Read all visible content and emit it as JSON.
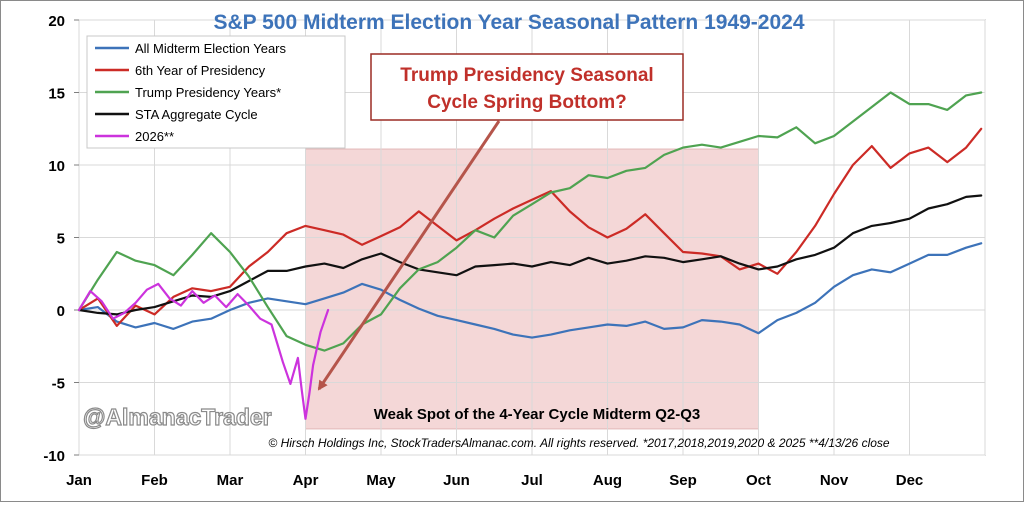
{
  "chart_data": {
    "type": "line",
    "title": "S&P 500 Midterm Election Year Seasonal Pattern 1949-2024",
    "xlabel": "",
    "ylabel": "",
    "ylim": [
      -10,
      20
    ],
    "yticks": [
      "20",
      "15",
      "10",
      "5",
      "0",
      "-5",
      "-10"
    ],
    "yticks_values": [
      20,
      15,
      10,
      5,
      0,
      -5,
      -10
    ],
    "months": [
      "Jan",
      "Feb",
      "Mar",
      "Apr",
      "May",
      "Jun",
      "Jul",
      "Aug",
      "Sep",
      "Oct",
      "Nov",
      "Dec"
    ],
    "x_range": [
      0,
      12
    ],
    "grid": true,
    "legend_position": "top-left",
    "series": [
      {
        "name": "All Midterm Election Years",
        "color": "#3d73b9",
        "x": [
          0,
          0.25,
          0.5,
          0.75,
          1,
          1.25,
          1.5,
          1.75,
          2,
          2.25,
          2.5,
          2.75,
          3,
          3.25,
          3.5,
          3.75,
          4,
          4.25,
          4.5,
          4.75,
          5,
          5.25,
          5.5,
          5.75,
          6,
          6.25,
          6.5,
          6.75,
          7,
          7.25,
          7.5,
          7.75,
          8,
          8.25,
          8.5,
          8.75,
          9,
          9.25,
          9.5,
          9.75,
          10,
          10.25,
          10.5,
          10.75,
          11,
          11.25,
          11.5,
          11.75,
          11.95
        ],
        "values": [
          0,
          0.2,
          -0.8,
          -1.2,
          -0.9,
          -1.3,
          -0.8,
          -0.6,
          0,
          0.5,
          0.8,
          0.6,
          0.4,
          0.8,
          1.2,
          1.8,
          1.4,
          0.7,
          0.1,
          -0.4,
          -0.7,
          -1.0,
          -1.3,
          -1.7,
          -1.9,
          -1.7,
          -1.4,
          -1.2,
          -1.0,
          -1.1,
          -0.8,
          -1.3,
          -1.2,
          -0.7,
          -0.8,
          -1.0,
          -1.6,
          -0.7,
          -0.2,
          0.5,
          1.6,
          2.4,
          2.8,
          2.6,
          3.2,
          3.8,
          3.8,
          4.3,
          4.6
        ]
      },
      {
        "name": "6th Year of Presidency",
        "color": "#cc2b26",
        "x": [
          0,
          0.25,
          0.5,
          0.75,
          1,
          1.25,
          1.5,
          1.75,
          2,
          2.25,
          2.5,
          2.75,
          3,
          3.25,
          3.5,
          3.75,
          4,
          4.25,
          4.5,
          4.75,
          5,
          5.25,
          5.5,
          5.75,
          6,
          6.25,
          6.5,
          6.75,
          7,
          7.25,
          7.5,
          7.75,
          8,
          8.25,
          8.5,
          8.75,
          9,
          9.25,
          9.5,
          9.75,
          10,
          10.25,
          10.5,
          10.75,
          11,
          11.25,
          11.5,
          11.75,
          11.95
        ],
        "values": [
          0,
          0.8,
          -1.1,
          0.3,
          -0.3,
          0.9,
          1.5,
          1.3,
          1.6,
          3.0,
          4.0,
          5.3,
          5.8,
          5.5,
          5.2,
          4.5,
          5.1,
          5.7,
          6.8,
          5.8,
          4.8,
          5.5,
          6.3,
          7.0,
          7.6,
          8.2,
          6.8,
          5.7,
          5.0,
          5.6,
          6.6,
          5.3,
          4.0,
          3.9,
          3.7,
          2.8,
          3.2,
          2.5,
          4.0,
          5.8,
          8.0,
          10.0,
          11.3,
          9.8,
          10.8,
          11.2,
          10.2,
          11.2,
          12.5
        ]
      },
      {
        "name": "Trump Presidency Years*",
        "color": "#4fa351",
        "x": [
          0,
          0.25,
          0.5,
          0.75,
          1,
          1.25,
          1.5,
          1.75,
          2,
          2.25,
          2.5,
          2.75,
          3,
          3.25,
          3.5,
          3.75,
          4,
          4.25,
          4.5,
          4.75,
          5,
          5.25,
          5.5,
          5.75,
          6,
          6.25,
          6.5,
          6.75,
          7,
          7.25,
          7.5,
          7.75,
          8,
          8.25,
          8.5,
          8.75,
          9,
          9.25,
          9.5,
          9.75,
          10,
          10.25,
          10.5,
          10.75,
          11,
          11.25,
          11.5,
          11.75,
          11.95
        ],
        "values": [
          0,
          2.1,
          4.0,
          3.4,
          3.1,
          2.4,
          3.8,
          5.3,
          4.0,
          2.3,
          0.2,
          -1.8,
          -2.4,
          -2.8,
          -2.3,
          -1.0,
          -0.3,
          1.5,
          2.8,
          3.3,
          4.3,
          5.5,
          5.0,
          6.5,
          7.3,
          8.1,
          8.4,
          9.3,
          9.1,
          9.6,
          9.8,
          10.7,
          11.2,
          11.4,
          11.2,
          11.6,
          12.0,
          11.9,
          12.6,
          11.5,
          12.0,
          13.0,
          14.0,
          15.0,
          14.2,
          14.2,
          13.8,
          14.8,
          15.0
        ]
      },
      {
        "name": "STA Aggregate Cycle",
        "color": "#111111",
        "x": [
          0,
          0.25,
          0.5,
          0.75,
          1,
          1.25,
          1.5,
          1.75,
          2,
          2.25,
          2.5,
          2.75,
          3,
          3.25,
          3.5,
          3.75,
          4,
          4.25,
          4.5,
          4.75,
          5,
          5.25,
          5.5,
          5.75,
          6,
          6.25,
          6.5,
          6.75,
          7,
          7.25,
          7.5,
          7.75,
          8,
          8.25,
          8.5,
          8.75,
          9,
          9.25,
          9.5,
          9.75,
          10,
          10.25,
          10.5,
          10.75,
          11,
          11.25,
          11.5,
          11.75,
          11.95
        ],
        "values": [
          0,
          -0.2,
          -0.3,
          0,
          0.2,
          0.6,
          1.0,
          0.9,
          1.3,
          2.0,
          2.7,
          2.7,
          3.0,
          3.2,
          2.9,
          3.5,
          3.9,
          3.3,
          2.8,
          2.6,
          2.4,
          3.0,
          3.1,
          3.2,
          3.0,
          3.3,
          3.1,
          3.6,
          3.2,
          3.4,
          3.7,
          3.6,
          3.3,
          3.5,
          3.7,
          3.2,
          2.8,
          3.0,
          3.5,
          3.8,
          4.3,
          5.3,
          5.8,
          6.0,
          6.3,
          7.0,
          7.3,
          7.8,
          7.9
        ]
      },
      {
        "name": "2026**",
        "color": "#cc33dd",
        "x": [
          0,
          0.15,
          0.3,
          0.45,
          0.6,
          0.75,
          0.9,
          1.05,
          1.2,
          1.35,
          1.5,
          1.65,
          1.8,
          1.95,
          2.1,
          2.25,
          2.4,
          2.55,
          2.7,
          2.8,
          2.9,
          2.95,
          3.0,
          3.05,
          3.1,
          3.2,
          3.3
        ],
        "values": [
          0,
          1.3,
          0.6,
          -0.6,
          -0.2,
          0.5,
          1.4,
          1.8,
          0.8,
          0.3,
          1.3,
          0.5,
          1.0,
          0.2,
          1.1,
          0.3,
          -0.6,
          -1.0,
          -3.6,
          -5.1,
          -3.3,
          -5.5,
          -7.5,
          -5.8,
          -3.8,
          -1.5,
          0
        ]
      }
    ],
    "shaded_region": {
      "x_start": 3.0,
      "x_end": 9.0,
      "y_start": -8.2,
      "y_end": 11.1,
      "color": "#f4d7d7"
    },
    "annotations": {
      "box_line1": "Trump Presidency Seasonal",
      "box_line2": "Cycle Spring Bottom?",
      "weak_spot": "Weak Spot of the 4-Year Cycle Midterm Q2-Q3",
      "handle": "@AlmanacTrader",
      "copyright": "© Hirsch Holdings Inc, StockTradersAlmanac.com. All rights reserved. *2017,2018,2019,2020 & 2025 **4/13/26 close"
    }
  },
  "colors": {
    "title": "#3d73b9",
    "box_border": "#9b2c24",
    "box_text": "#c0302a",
    "arrow": "#b5554b",
    "grid": "#d9d9d9",
    "axis": "#7f7f7f"
  }
}
